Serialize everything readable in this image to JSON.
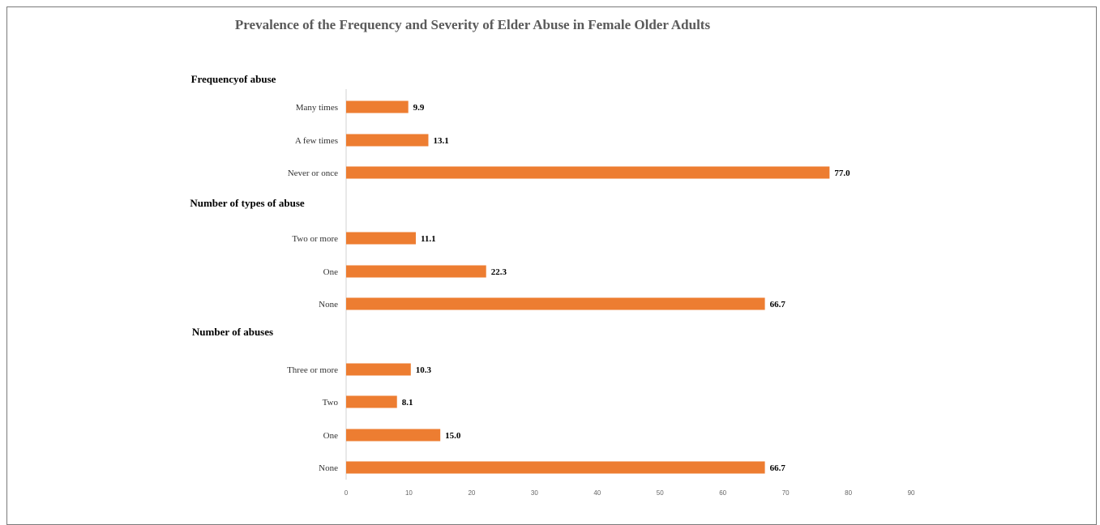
{
  "chart_data": {
    "type": "bar",
    "orientation": "horizontal",
    "title": "Prevalence of the Frequency and Severity of Elder Abuse in Female Older Adults",
    "xlim": [
      0,
      90
    ],
    "x_ticks": [
      "0",
      "10",
      "20",
      "30",
      "40",
      "50",
      "60",
      "70",
      "80",
      "90"
    ],
    "grid": false,
    "bar_color": "#ed7d31",
    "groups": [
      {
        "label": "Frequencyof abuse",
        "categories": [
          "Many times",
          "A few times",
          "Never or once"
        ],
        "values": [
          9.9,
          13.1,
          77.0
        ],
        "value_labels": [
          "9.9",
          "13.1",
          "77.0"
        ]
      },
      {
        "label": "Number of types of abuse",
        "categories": [
          "Two or more",
          "One",
          "None"
        ],
        "values": [
          11.1,
          22.3,
          66.7
        ],
        "value_labels": [
          "11.1",
          "22.3",
          "66.7"
        ]
      },
      {
        "label": "Number of abuses",
        "categories": [
          "Three or more",
          "Two",
          "One",
          "None"
        ],
        "values": [
          10.3,
          8.1,
          15.0,
          66.7
        ],
        "value_labels": [
          "10.3",
          "8.1",
          "15.0",
          "66.7"
        ]
      }
    ]
  }
}
